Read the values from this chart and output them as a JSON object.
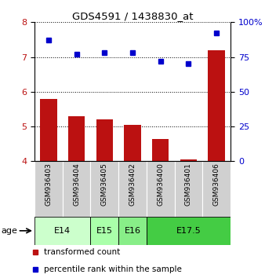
{
  "title": "GDS4591 / 1438830_at",
  "categories": [
    "GSM936403",
    "GSM936404",
    "GSM936405",
    "GSM936402",
    "GSM936400",
    "GSM936401",
    "GSM936406"
  ],
  "red_values": [
    5.8,
    5.3,
    5.2,
    5.05,
    4.65,
    4.05,
    7.2
  ],
  "blue_values": [
    87,
    77,
    78,
    78,
    72,
    70,
    92
  ],
  "ylim_left": [
    4,
    8
  ],
  "ylim_right": [
    0,
    100
  ],
  "yticks_left": [
    4,
    5,
    6,
    7,
    8
  ],
  "yticks_right": [
    0,
    25,
    50,
    75,
    100
  ],
  "bar_color": "#bb1111",
  "dot_color": "#0000cc",
  "sample_bg_color": "#d0d0d0",
  "age_groups": [
    {
      "label": "E14",
      "start": 0,
      "end": 2,
      "color": "#ccffcc"
    },
    {
      "label": "E15",
      "start": 2,
      "end": 3,
      "color": "#aaffaa"
    },
    {
      "label": "E16",
      "start": 3,
      "end": 4,
      "color": "#88ee88"
    },
    {
      "label": "E17.5",
      "start": 4,
      "end": 7,
      "color": "#44cc44"
    }
  ],
  "legend_red_label": "transformed count",
  "legend_blue_label": "percentile rank within the sample",
  "age_label": "age",
  "bar_width": 0.6
}
